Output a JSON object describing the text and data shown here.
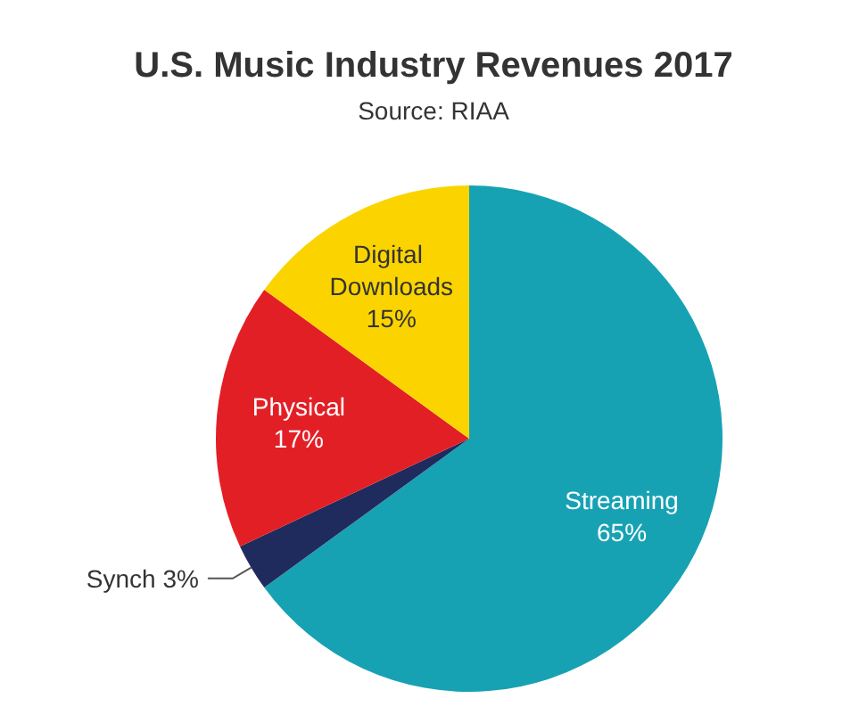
{
  "chart_data": {
    "type": "pie",
    "title": "U.S. Music Industry Revenues 2017",
    "subtitle": "Source: RIAA",
    "categories": [
      "Streaming",
      "Synch",
      "Physical",
      "Digital Downloads"
    ],
    "values": [
      65,
      3,
      17,
      15
    ],
    "colors": [
      "#17a2b4",
      "#1f2b5c",
      "#e31f26",
      "#fbd400"
    ],
    "value_labels": [
      "65%",
      "3%",
      "17%",
      "15%"
    ]
  }
}
